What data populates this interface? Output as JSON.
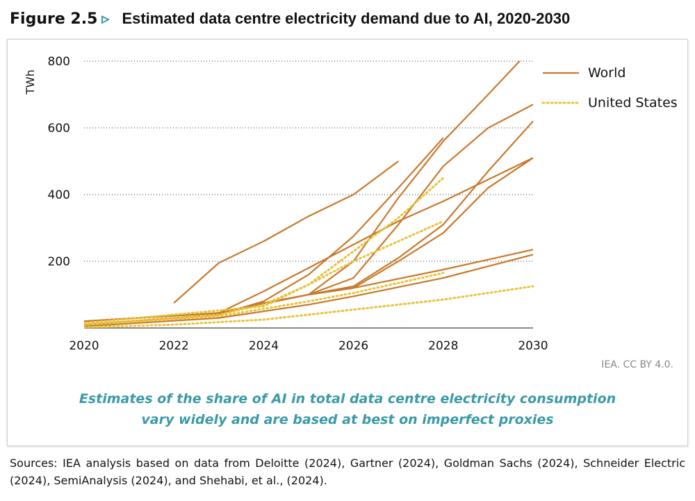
{
  "title": {
    "figure": "Figure 2.5",
    "arrow": "▹",
    "text": "Estimated data centre electricity demand due to AI, 2020-2030"
  },
  "credit": "IEA. CC BY 4.0.",
  "subtitle_lines": [
    "Estimates of the share of AI in total data centre electricity consumption",
    "vary widely and are based at best on imperfect proxies"
  ],
  "sources": "Sources: IEA analysis based on data from Deloitte (2024), Gartner (2024), Goldman Sachs (2024), Schneider Electric (2024), SemiAnalysis (2024), and Shehabi, et al., (2024).",
  "colors": {
    "world": "#c8782a",
    "us": "#e8c33a"
  },
  "chart_data": {
    "type": "line",
    "ylabel": "TWh",
    "xlim": [
      2020,
      2030
    ],
    "ylim": [
      0,
      800
    ],
    "xticks": [
      "2020",
      "2022",
      "2024",
      "2026",
      "2028",
      "2030"
    ],
    "yticks": [
      "200",
      "400",
      "600",
      "800"
    ],
    "grid": "horizontal dotted",
    "legend": {
      "position": "top-right",
      "entries": [
        {
          "label": "World",
          "style": "solid"
        },
        {
          "label": "United States",
          "style": "dotted"
        }
      ]
    },
    "series": [
      {
        "group": "World",
        "points": [
          [
            2022,
            75
          ],
          [
            2023,
            195
          ],
          [
            2024,
            260
          ],
          [
            2025,
            335
          ],
          [
            2026,
            400
          ],
          [
            2027,
            500
          ]
        ]
      },
      {
        "group": "World",
        "points": [
          [
            2020,
            20
          ],
          [
            2023,
            45
          ],
          [
            2024,
            110
          ],
          [
            2025,
            180
          ],
          [
            2026,
            250
          ],
          [
            2027,
            320
          ],
          [
            2028,
            380
          ],
          [
            2029,
            445
          ],
          [
            2030,
            510
          ]
        ]
      },
      {
        "group": "World",
        "points": [
          [
            2020,
            20
          ],
          [
            2023,
            45
          ],
          [
            2024,
            75
          ],
          [
            2025,
            100
          ],
          [
            2026,
            200
          ],
          [
            2027,
            390
          ],
          [
            2028,
            560
          ],
          [
            2029,
            700
          ],
          [
            2029.7,
            800
          ]
        ]
      },
      {
        "group": "World",
        "points": [
          [
            2020,
            10
          ],
          [
            2023,
            40
          ],
          [
            2024,
            80
          ],
          [
            2025,
            160
          ],
          [
            2026,
            275
          ],
          [
            2027,
            420
          ],
          [
            2028,
            570
          ]
        ]
      },
      {
        "group": "World",
        "points": [
          [
            2025,
            100
          ],
          [
            2026,
            150
          ],
          [
            2027,
            310
          ],
          [
            2028,
            485
          ],
          [
            2029,
            600
          ],
          [
            2030,
            670
          ]
        ]
      },
      {
        "group": "World",
        "points": [
          [
            2025,
            100
          ],
          [
            2026,
            125
          ],
          [
            2027,
            210
          ],
          [
            2028,
            310
          ],
          [
            2029,
            470
          ],
          [
            2030,
            620
          ]
        ]
      },
      {
        "group": "World",
        "points": [
          [
            2025,
            100
          ],
          [
            2026,
            120
          ],
          [
            2027,
            200
          ],
          [
            2028,
            285
          ],
          [
            2029,
            420
          ],
          [
            2030,
            510
          ]
        ]
      },
      {
        "group": "World",
        "points": [
          [
            2020,
            20
          ],
          [
            2023,
            45
          ],
          [
            2025,
            100
          ],
          [
            2026,
            120
          ],
          [
            2028,
            175
          ],
          [
            2030,
            235
          ]
        ]
      },
      {
        "group": "World",
        "points": [
          [
            2020,
            5
          ],
          [
            2023,
            30
          ],
          [
            2025,
            70
          ],
          [
            2026,
            95
          ],
          [
            2028,
            150
          ],
          [
            2030,
            220
          ]
        ]
      },
      {
        "group": "United States",
        "points": [
          [
            2020,
            10
          ],
          [
            2023,
            40
          ],
          [
            2024,
            70
          ],
          [
            2025,
            130
          ],
          [
            2026,
            230
          ],
          [
            2027,
            330
          ],
          [
            2028,
            450
          ]
        ]
      },
      {
        "group": "United States",
        "points": [
          [
            2020,
            15
          ],
          [
            2024,
            65
          ],
          [
            2025,
            130
          ],
          [
            2026,
            200
          ],
          [
            2027,
            260
          ],
          [
            2028,
            320
          ]
        ]
      },
      {
        "group": "United States",
        "points": [
          [
            2020,
            10
          ],
          [
            2023,
            35
          ],
          [
            2025,
            80
          ],
          [
            2026,
            105
          ],
          [
            2028,
            165
          ]
        ]
      },
      {
        "group": "United States",
        "points": [
          [
            2020,
            2
          ],
          [
            2022,
            10
          ],
          [
            2024,
            25
          ],
          [
            2026,
            55
          ],
          [
            2028,
            85
          ],
          [
            2030,
            125
          ]
        ]
      }
    ]
  }
}
